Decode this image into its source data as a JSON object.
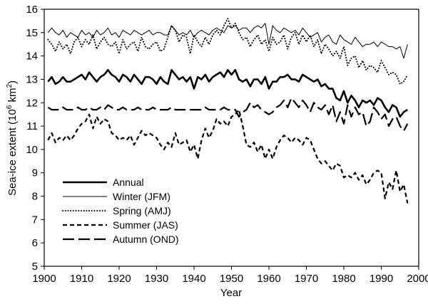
{
  "chart_data": {
    "type": "line",
    "xlabel": "Year",
    "ylabel": {
      "main": "Sea-ice extent (10",
      "exp": "6",
      "unit": " km",
      "unit_exp": "2",
      "close": ")"
    },
    "xlim": [
      1900,
      2000
    ],
    "ylim": [
      5,
      16
    ],
    "x_ticks": [
      "1900",
      "1910",
      "1920",
      "1930",
      "1940",
      "1950",
      "1960",
      "1970",
      "1980",
      "1990",
      "2000"
    ],
    "y_ticks": [
      "5",
      "6",
      "7",
      "8",
      "9",
      "10",
      "11",
      "12",
      "13",
      "14",
      "15",
      "16"
    ],
    "grid": false,
    "legend_position": "lower-left",
    "series": [
      {
        "name": "Annual",
        "style": "thick-solid",
        "color": "#000000",
        "x": [
          1901,
          1902,
          1903,
          1904,
          1905,
          1906,
          1907,
          1908,
          1909,
          1910,
          1911,
          1912,
          1913,
          1914,
          1915,
          1916,
          1917,
          1918,
          1919,
          1920,
          1921,
          1922,
          1923,
          1924,
          1925,
          1926,
          1927,
          1928,
          1929,
          1930,
          1931,
          1932,
          1933,
          1934,
          1935,
          1936,
          1937,
          1938,
          1939,
          1940,
          1941,
          1942,
          1943,
          1944,
          1945,
          1946,
          1947,
          1948,
          1949,
          1950,
          1951,
          1952,
          1953,
          1954,
          1955,
          1956,
          1957,
          1958,
          1959,
          1960,
          1961,
          1962,
          1963,
          1964,
          1965,
          1966,
          1967,
          1968,
          1969,
          1970,
          1971,
          1972,
          1973,
          1974,
          1975,
          1976,
          1977,
          1978,
          1979,
          1980,
          1981,
          1982,
          1983,
          1984,
          1985,
          1986,
          1987,
          1988,
          1989,
          1990,
          1991,
          1992,
          1993,
          1994,
          1995,
          1996,
          1997
        ],
        "values": [
          12.9,
          13.1,
          12.8,
          12.9,
          13.1,
          12.9,
          12.9,
          13.0,
          13.1,
          13.2,
          13.0,
          13.3,
          13.1,
          12.9,
          13.1,
          13.2,
          13.4,
          13.2,
          13.1,
          12.9,
          13.2,
          13.1,
          12.9,
          13.2,
          13.0,
          12.8,
          13.1,
          13.1,
          13.0,
          12.8,
          13.1,
          12.9,
          12.8,
          13.4,
          13.2,
          13.0,
          13.1,
          12.9,
          13.1,
          12.6,
          13.1,
          13.0,
          13.2,
          12.9,
          13.1,
          13.2,
          13.3,
          13.1,
          13.4,
          13.2,
          13.4,
          13.0,
          12.9,
          13.0,
          12.7,
          13.0,
          13.0,
          12.8,
          13.1,
          12.6,
          12.9,
          12.9,
          13.1,
          13.1,
          13.2,
          13.0,
          13.0,
          12.9,
          13.2,
          13.1,
          13.0,
          12.9,
          13.0,
          12.7,
          12.8,
          12.6,
          12.6,
          12.2,
          12.1,
          12.5,
          12.0,
          12.3,
          12.1,
          11.8,
          12.1,
          12.0,
          12.1,
          11.9,
          12.2,
          12.1,
          11.8,
          11.6,
          11.9,
          11.8,
          11.4,
          11.6,
          11.7
        ]
      },
      {
        "name": "Winter (JFM)",
        "style": "thin-solid",
        "color": "#000000",
        "x": [
          1901,
          1902,
          1903,
          1904,
          1905,
          1906,
          1907,
          1908,
          1909,
          1910,
          1911,
          1912,
          1913,
          1914,
          1915,
          1916,
          1917,
          1918,
          1919,
          1920,
          1921,
          1922,
          1923,
          1924,
          1925,
          1926,
          1927,
          1928,
          1929,
          1930,
          1931,
          1932,
          1933,
          1934,
          1935,
          1936,
          1937,
          1938,
          1939,
          1940,
          1941,
          1942,
          1943,
          1944,
          1945,
          1946,
          1947,
          1948,
          1949,
          1950,
          1951,
          1952,
          1953,
          1954,
          1955,
          1956,
          1957,
          1958,
          1959,
          1960,
          1961,
          1962,
          1963,
          1964,
          1965,
          1966,
          1967,
          1968,
          1969,
          1970,
          1971,
          1972,
          1973,
          1974,
          1975,
          1976,
          1977,
          1978,
          1979,
          1980,
          1981,
          1982,
          1983,
          1984,
          1985,
          1986,
          1987,
          1988,
          1989,
          1990,
          1991,
          1992,
          1993,
          1994,
          1995,
          1996,
          1997
        ],
        "values": [
          15.0,
          15.2,
          15.0,
          14.9,
          15.1,
          14.8,
          15.0,
          14.9,
          14.8,
          15.1,
          14.9,
          15.0,
          14.8,
          15.1,
          14.9,
          15.0,
          15.2,
          14.9,
          15.0,
          14.8,
          15.1,
          15.0,
          14.9,
          15.1,
          15.0,
          14.9,
          15.0,
          15.1,
          14.9,
          15.0,
          15.0,
          14.9,
          14.9,
          15.3,
          15.1,
          14.9,
          15.0,
          14.9,
          15.1,
          14.8,
          15.0,
          15.1,
          15.0,
          14.9,
          15.1,
          15.2,
          15.1,
          15.0,
          15.3,
          15.2,
          15.3,
          15.1,
          15.2,
          15.2,
          15.0,
          15.2,
          15.3,
          15.2,
          15.4,
          14.5,
          15.3,
          15.1,
          15.0,
          15.2,
          15.1,
          15.0,
          15.1,
          14.9,
          15.2,
          15.0,
          14.8,
          14.9,
          15.0,
          14.6,
          14.8,
          14.9,
          14.6,
          14.5,
          14.9,
          14.7,
          14.6,
          14.5,
          14.8,
          14.6,
          14.4,
          14.5,
          14.5,
          14.6,
          14.4,
          14.6,
          14.5,
          14.4,
          14.4,
          14.3,
          14.4,
          13.9,
          14.5
        ]
      },
      {
        "name": "Spring (AMJ)",
        "style": "dotted",
        "color": "#000000",
        "x": [
          1901,
          1902,
          1903,
          1904,
          1905,
          1906,
          1907,
          1908,
          1909,
          1910,
          1911,
          1912,
          1913,
          1914,
          1915,
          1916,
          1917,
          1918,
          1919,
          1920,
          1921,
          1922,
          1923,
          1924,
          1925,
          1926,
          1927,
          1928,
          1929,
          1930,
          1931,
          1932,
          1933,
          1934,
          1935,
          1936,
          1937,
          1938,
          1939,
          1940,
          1941,
          1942,
          1943,
          1944,
          1945,
          1946,
          1947,
          1948,
          1949,
          1950,
          1951,
          1952,
          1953,
          1954,
          1955,
          1956,
          1957,
          1958,
          1959,
          1960,
          1961,
          1962,
          1963,
          1964,
          1965,
          1966,
          1967,
          1968,
          1969,
          1970,
          1971,
          1972,
          1973,
          1974,
          1975,
          1976,
          1977,
          1978,
          1979,
          1980,
          1981,
          1982,
          1983,
          1984,
          1985,
          1986,
          1987,
          1988,
          1989,
          1990,
          1991,
          1992,
          1993,
          1994,
          1995,
          1996,
          1997
        ],
        "values": [
          14.7,
          14.5,
          14.2,
          14.6,
          14.3,
          14.5,
          14.1,
          14.6,
          14.8,
          14.4,
          14.7,
          14.5,
          14.9,
          14.3,
          14.6,
          14.8,
          14.5,
          14.4,
          14.6,
          14.1,
          14.7,
          14.3,
          14.5,
          14.6,
          14.2,
          14.8,
          14.4,
          14.3,
          14.5,
          14.6,
          14.2,
          14.3,
          14.8,
          15.3,
          15.1,
          14.6,
          14.9,
          14.8,
          14.1,
          14.9,
          14.6,
          14.4,
          14.8,
          14.5,
          14.9,
          15.1,
          14.9,
          15.3,
          15.6,
          15.2,
          15.4,
          15.0,
          14.7,
          14.8,
          14.4,
          14.7,
          14.9,
          14.5,
          14.7,
          14.2,
          14.8,
          14.5,
          14.6,
          14.9,
          14.3,
          14.8,
          15.0,
          14.5,
          14.9,
          14.6,
          14.9,
          14.4,
          14.7,
          14.1,
          14.5,
          14.3,
          14.0,
          14.2,
          13.9,
          14.4,
          13.6,
          13.9,
          14.0,
          13.5,
          13.8,
          13.4,
          13.6,
          13.5,
          13.3,
          13.8,
          13.5,
          13.2,
          13.3,
          13.2,
          12.8,
          12.9,
          13.2
        ]
      },
      {
        "name": "Summer (JAS)",
        "style": "short-dash",
        "color": "#000000",
        "x": [
          1901,
          1902,
          1903,
          1904,
          1905,
          1906,
          1907,
          1908,
          1909,
          1910,
          1911,
          1912,
          1913,
          1914,
          1915,
          1916,
          1917,
          1918,
          1919,
          1920,
          1921,
          1922,
          1923,
          1924,
          1925,
          1926,
          1927,
          1928,
          1929,
          1930,
          1931,
          1932,
          1933,
          1934,
          1935,
          1936,
          1937,
          1938,
          1939,
          1940,
          1941,
          1942,
          1943,
          1944,
          1945,
          1946,
          1947,
          1948,
          1949,
          1950,
          1951,
          1952,
          1953,
          1954,
          1955,
          1956,
          1957,
          1958,
          1959,
          1960,
          1961,
          1962,
          1963,
          1964,
          1965,
          1966,
          1967,
          1968,
          1969,
          1970,
          1971,
          1972,
          1973,
          1974,
          1975,
          1976,
          1977,
          1978,
          1979,
          1980,
          1981,
          1982,
          1983,
          1984,
          1985,
          1986,
          1987,
          1988,
          1989,
          1990,
          1991,
          1992,
          1993,
          1994,
          1995,
          1996,
          1997
        ],
        "values": [
          10.4,
          10.7,
          10.3,
          10.5,
          10.4,
          10.6,
          10.4,
          10.6,
          10.9,
          11.1,
          11.2,
          11.5,
          10.9,
          11.4,
          11.1,
          11.3,
          11.2,
          10.7,
          10.6,
          10.4,
          10.5,
          10.4,
          10.6,
          10.2,
          10.5,
          10.8,
          10.6,
          10.7,
          10.6,
          10.5,
          10.2,
          10.0,
          10.3,
          10.1,
          10.7,
          10.2,
          10.3,
          10.4,
          9.9,
          10.2,
          9.6,
          10.4,
          10.9,
          10.5,
          10.8,
          11.3,
          11.1,
          11.2,
          11.0,
          11.4,
          11.5,
          11.7,
          11.0,
          10.2,
          10.1,
          10.3,
          9.9,
          10.2,
          9.6,
          10.0,
          9.6,
          10.1,
          10.4,
          10.6,
          10.5,
          10.3,
          10.5,
          10.4,
          10.2,
          10.5,
          10.4,
          10.0,
          9.6,
          9.4,
          9.5,
          9.3,
          9.1,
          9.4,
          9.3,
          8.8,
          8.9,
          8.8,
          9.0,
          8.7,
          8.9,
          8.5,
          8.7,
          9.0,
          9.1,
          9.0,
          7.9,
          8.6,
          8.3,
          9.1,
          8.2,
          8.5,
          7.7
        ]
      },
      {
        "name": "Autumn (OND)",
        "style": "long-dash",
        "color": "#000000",
        "x": [
          1901,
          1902,
          1903,
          1904,
          1905,
          1906,
          1907,
          1908,
          1909,
          1910,
          1911,
          1912,
          1913,
          1914,
          1915,
          1916,
          1917,
          1918,
          1919,
          1920,
          1921,
          1922,
          1923,
          1924,
          1925,
          1926,
          1927,
          1928,
          1929,
          1930,
          1931,
          1932,
          1933,
          1934,
          1935,
          1936,
          1937,
          1938,
          1939,
          1940,
          1941,
          1942,
          1943,
          1944,
          1945,
          1946,
          1947,
          1948,
          1949,
          1950,
          1951,
          1952,
          1953,
          1954,
          1955,
          1956,
          1957,
          1958,
          1959,
          1960,
          1961,
          1962,
          1963,
          1964,
          1965,
          1966,
          1967,
          1968,
          1969,
          1970,
          1971,
          1972,
          1973,
          1974,
          1975,
          1976,
          1977,
          1978,
          1979,
          1980,
          1981,
          1982,
          1983,
          1984,
          1985,
          1986,
          1987,
          1988,
          1989,
          1990,
          1991,
          1992,
          1993,
          1994,
          1995,
          1996,
          1997
        ],
        "values": [
          11.8,
          11.7,
          11.7,
          11.7,
          11.8,
          11.7,
          11.7,
          11.7,
          11.8,
          11.7,
          11.7,
          11.8,
          11.7,
          11.7,
          11.8,
          11.7,
          11.9,
          11.8,
          11.7,
          11.7,
          11.8,
          11.7,
          11.7,
          11.7,
          11.8,
          11.7,
          11.7,
          11.7,
          11.8,
          11.7,
          11.7,
          11.7,
          11.7,
          11.8,
          11.7,
          11.7,
          11.7,
          11.7,
          11.7,
          11.7,
          11.7,
          11.7,
          11.8,
          11.7,
          11.7,
          11.7,
          11.7,
          11.8,
          11.7,
          11.7,
          11.7,
          11.4,
          11.6,
          11.7,
          12.0,
          11.8,
          11.9,
          11.7,
          11.6,
          11.5,
          11.6,
          11.8,
          11.9,
          12.1,
          11.8,
          12.2,
          12.0,
          11.8,
          12.1,
          11.9,
          11.6,
          12.0,
          11.8,
          11.7,
          11.9,
          11.5,
          11.9,
          11.2,
          11.6,
          11.1,
          11.9,
          11.4,
          11.8,
          11.5,
          11.6,
          11.0,
          11.2,
          11.8,
          11.6,
          11.3,
          11.5,
          11.0,
          11.3,
          11.4,
          11.0,
          10.8,
          11.1
        ]
      }
    ]
  }
}
